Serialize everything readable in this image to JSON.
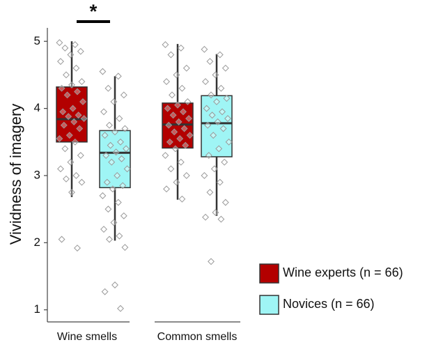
{
  "chart_data": {
    "type": "box",
    "ylabel": "Vividness of imagery",
    "annotation": "*",
    "categories": [
      "Wine smells",
      "Common smells"
    ],
    "ylim": [
      0.82,
      5.2
    ],
    "yticks": [
      1,
      2,
      3,
      4,
      5
    ],
    "legend": "bottom-right",
    "series": [
      {
        "name": "Wine experts (n = 66)",
        "color": "#b30000",
        "boxes": [
          {
            "min": 2.68,
            "q1": 3.5,
            "median": 3.84,
            "q3": 4.32,
            "max": 5.0,
            "points": [
              4.98,
              4.95,
              4.9,
              4.85,
              4.8,
              4.7,
              4.6,
              4.5,
              4.4,
              4.35,
              4.3,
              4.25,
              4.2,
              4.1,
              4.0,
              3.95,
              3.9,
              3.88,
              3.85,
              3.8,
              3.75,
              3.7,
              3.6,
              3.55,
              3.5,
              3.4,
              3.3,
              3.2,
              3.1,
              3.0,
              2.95,
              2.9,
              2.75,
              2.05,
              1.92
            ]
          },
          {
            "min": 2.64,
            "q1": 3.41,
            "median": 3.76,
            "q3": 4.08,
            "max": 4.96,
            "points": [
              4.95,
              4.9,
              4.8,
              4.6,
              4.5,
              4.4,
              4.3,
              4.2,
              4.1,
              4.05,
              4.0,
              3.95,
              3.9,
              3.85,
              3.8,
              3.75,
              3.7,
              3.65,
              3.6,
              3.55,
              3.5,
              3.45,
              3.4,
              3.3,
              3.2,
              3.1,
              3.0,
              2.9,
              2.8,
              2.65
            ]
          }
        ]
      },
      {
        "name": "Novices (n = 66)",
        "color": "#9ff5f5",
        "boxes": [
          {
            "min": 2.03,
            "q1": 2.82,
            "median": 3.34,
            "q3": 3.67,
            "max": 4.48,
            "points": [
              4.55,
              4.48,
              4.3,
              4.2,
              4.1,
              3.95,
              3.85,
              3.75,
              3.7,
              3.65,
              3.6,
              3.5,
              3.45,
              3.4,
              3.35,
              3.3,
              3.25,
              3.2,
              3.1,
              3.0,
              2.9,
              2.85,
              2.8,
              2.7,
              2.6,
              2.5,
              2.4,
              2.3,
              2.2,
              2.1,
              2.05,
              1.93,
              1.37,
              1.27,
              1.02
            ]
          },
          {
            "min": 2.4,
            "q1": 3.28,
            "median": 3.78,
            "q3": 4.19,
            "max": 4.81,
            "points": [
              4.88,
              4.8,
              4.7,
              4.6,
              4.5,
              4.4,
              4.3,
              4.2,
              4.15,
              4.1,
              4.0,
              3.95,
              3.9,
              3.85,
              3.8,
              3.75,
              3.7,
              3.6,
              3.5,
              3.4,
              3.3,
              3.2,
              3.1,
              3.0,
              2.9,
              2.75,
              2.6,
              2.45,
              2.38,
              2.35,
              1.72
            ]
          }
        ]
      }
    ]
  }
}
